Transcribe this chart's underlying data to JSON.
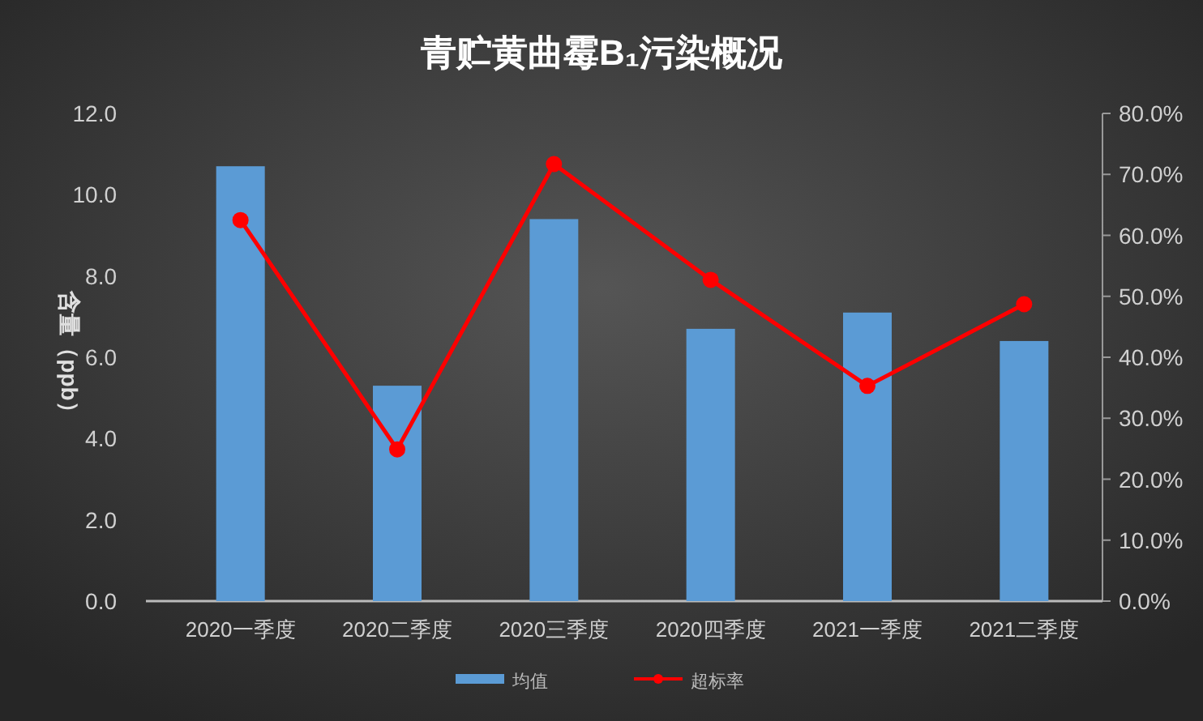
{
  "chart_data": {
    "type": "bar",
    "title": "青贮黄曲霉B₁污染概况",
    "ylabel": "含量（ppb）",
    "categories": [
      "2020一季度",
      "2020二季度",
      "2020三季度",
      "2020四季度",
      "2021一季度",
      "2021二季度"
    ],
    "series": [
      {
        "name": "均值",
        "color": "#5b9bd5",
        "values": [
          10.7,
          5.3,
          9.4,
          6.7,
          7.1,
          6.4
        ]
      },
      {
        "name": "超标率",
        "type": "line",
        "axis": "y2",
        "color": "#ff0000",
        "marker": "circle",
        "values": [
          62.5,
          24.9,
          71.7,
          52.7,
          35.3,
          48.7
        ]
      }
    ],
    "ylim": [
      0,
      12
    ],
    "yticks": [
      {
        "value": 0,
        "label": "0.0"
      },
      {
        "value": 2,
        "label": "2.0"
      },
      {
        "value": 4,
        "label": "4.0"
      },
      {
        "value": 6,
        "label": "6.0"
      },
      {
        "value": 8,
        "label": "8.0"
      },
      {
        "value": 10,
        "label": "10.0"
      },
      {
        "value": 12,
        "label": "12.0"
      }
    ],
    "y2lim": [
      0,
      80
    ],
    "y2ticks": [
      {
        "value": 0,
        "label": "0.0%"
      },
      {
        "value": 10,
        "label": "10.0%"
      },
      {
        "value": 20,
        "label": "20.0%"
      },
      {
        "value": 30,
        "label": "30.0%"
      },
      {
        "value": 40,
        "label": "40.0%"
      },
      {
        "value": 50,
        "label": "50.0%"
      },
      {
        "value": 60,
        "label": "60.0%"
      },
      {
        "value": 70,
        "label": "70.0%"
      },
      {
        "value": 80,
        "label": "80.0%"
      }
    ],
    "grid": false,
    "legend": "bottom"
  }
}
